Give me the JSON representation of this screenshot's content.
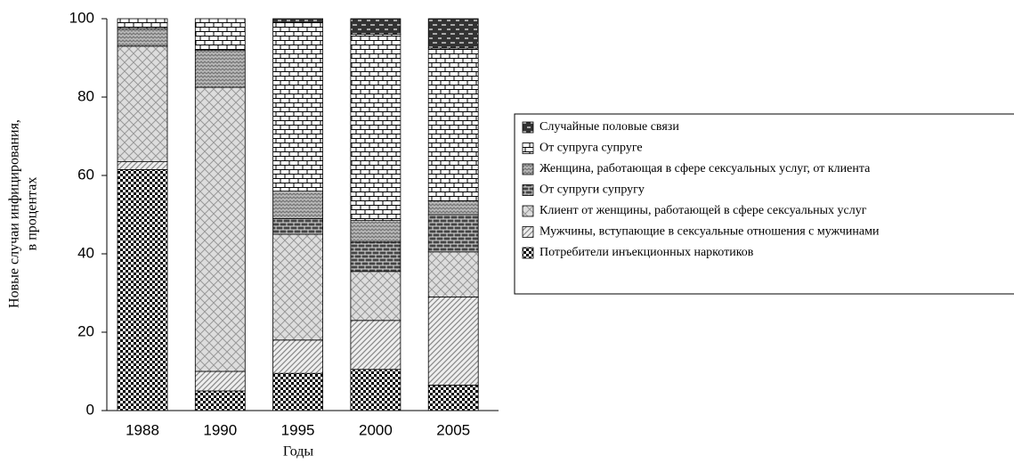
{
  "chart_data": {
    "type": "stacked_bar",
    "y_label": [
      "Новые случаи инфицирования,",
      "в процентах"
    ],
    "x_label": "Годы",
    "categories": [
      "1988",
      "1990",
      "1995",
      "2000",
      "2005"
    ],
    "ylim": [
      0,
      100
    ],
    "yticks": [
      0,
      20,
      40,
      60,
      80,
      100
    ],
    "series": [
      {
        "name": "Потребители инъекционных наркотиков",
        "color": "#000000",
        "pattern": "checker",
        "values": [
          61.5,
          5,
          9.5,
          10.5,
          6.5
        ]
      },
      {
        "name": "Мужчины, вступающие в сексуальные отношения с мужчинами",
        "color": "#888888",
        "pattern": "hatch",
        "values": [
          2,
          5,
          8.5,
          12.5,
          22.5
        ]
      },
      {
        "name": "Клиент от женщины, работающей в сфере сексуальных услуг",
        "color": "#999999",
        "pattern": "diamond",
        "values": [
          29.5,
          72.5,
          27,
          12.5,
          11.5
        ]
      },
      {
        "name": "От супруги супругу",
        "color": "#444444",
        "pattern": "darkbrick",
        "values": [
          0,
          0,
          4,
          7.5,
          9.5
        ]
      },
      {
        "name": "Женщина, работающая в сфере сексуальных услуг, от клиента",
        "color": "#777777",
        "pattern": "wave",
        "values": [
          4.5,
          9.5,
          7,
          5.5,
          3.5
        ]
      },
      {
        "name": "От супруга супруге",
        "color": "#000000",
        "pattern": "brick",
        "values": [
          2.5,
          8,
          43,
          47.5,
          39
        ]
      },
      {
        "name": "Случайные половые связи",
        "color": "#333333",
        "pattern": "dash",
        "values": [
          0,
          0,
          1,
          4,
          7.5
        ]
      }
    ],
    "legend": "right"
  }
}
